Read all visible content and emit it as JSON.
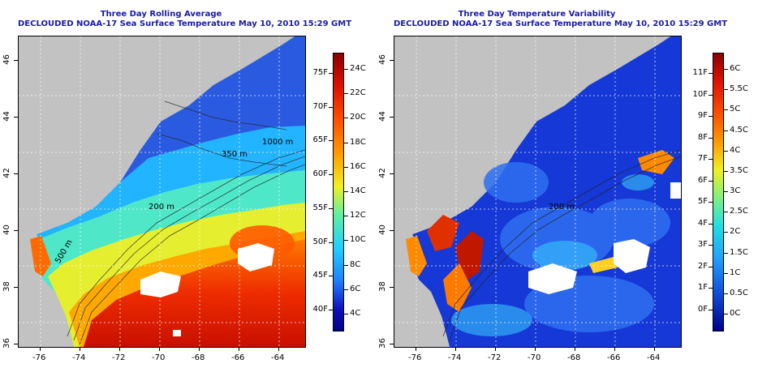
{
  "left": {
    "title": "Three Day Rolling Average",
    "subtitle": "DECLOUDED NOAA-17 Sea Surface Temperature May 10, 2010 15:29 GMT",
    "contours": [
      "200 m",
      "500 m",
      "1000 m",
      "350 m",
      "200 m"
    ],
    "colorbar": {
      "f_labels": [
        "75F",
        "70F",
        "65F",
        "60F",
        "55F",
        "50F",
        "45F",
        "40F"
      ],
      "c_labels": [
        "24C",
        "22C",
        "20C",
        "18C",
        "16C",
        "14C",
        "12C",
        "10C",
        "8C",
        "6C",
        "4C"
      ]
    }
  },
  "right": {
    "title": "Three Day Temperature Variability",
    "subtitle": "DECLOUDED NOAA-17 Sea Surface Temperature May 10, 2010 15:29 GMT",
    "contours": [
      "200 m"
    ],
    "colorbar": {
      "f_labels": [
        "11F",
        "10F",
        "9F",
        "8F",
        "7F",
        "6F",
        "5F",
        "4F",
        "3F",
        "2F",
        "1F",
        "0F"
      ],
      "c_labels": [
        "6C",
        "5.5C",
        "5C",
        "4.5C",
        "4C",
        "3.5C",
        "3C",
        "2.5C",
        "2C",
        "1.5C",
        "1C",
        "0.5C",
        "0C"
      ]
    }
  },
  "axes": {
    "lon_labels": [
      "-76",
      "-74",
      "-72",
      "-70",
      "-68",
      "-66",
      "-64"
    ],
    "lat_labels": [
      "46",
      "44",
      "42",
      "40",
      "38",
      "36"
    ]
  },
  "colors": {
    "land": "#c2c2c2",
    "title": "#1a1aa6"
  }
}
